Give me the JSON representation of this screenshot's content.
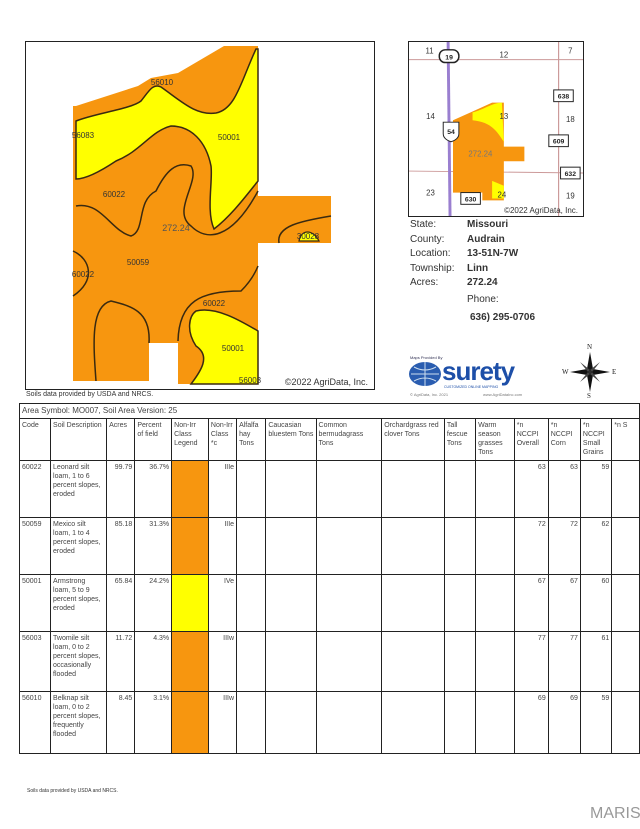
{
  "main_map": {
    "labels": [
      "56010",
      "56083",
      "50001",
      "60022",
      "272.24",
      "30028",
      "50059",
      "60022",
      "60022",
      "50001",
      "56003"
    ],
    "copyright": "©2022 AgriData, Inc.",
    "source_note": "Soils data provided by USDA and NRCS."
  },
  "mini_map": {
    "section_numbers": [
      "11",
      "12",
      "7",
      "14",
      "13",
      "18",
      "23",
      "24",
      "19"
    ],
    "route_shields": [
      "19",
      "54",
      "638",
      "609",
      "632",
      "630"
    ],
    "field_label": "272.24",
    "copyright": "©2022 AgriData, Inc."
  },
  "info": {
    "state_label": "State:",
    "state": "Missouri",
    "county_label": "County:",
    "county": "Audrain",
    "location_label": "Location:",
    "location": "13-51N-7W",
    "township_label": "Township:",
    "township": "Linn",
    "acres_label": "Acres:",
    "acres": "272.24",
    "phone_label": "Phone:",
    "phone": "636) 295-0706"
  },
  "logo": {
    "provided_by": "Maps Provided By",
    "brand": "surety",
    "tagline": "CUSTOMIZED ONLINE MAPPING",
    "footer_left": "© AgriData, Inc. 2021",
    "footer_right": "www.AgriDataInc.com",
    "compass": {
      "n": "N",
      "s": "S",
      "e": "E",
      "w": "W"
    }
  },
  "colors": {
    "orange": "#f7960f",
    "yellow": "#ffff00"
  },
  "table": {
    "title": "Area Symbol: MO007, Soil Area Version: 25",
    "headers": [
      "Code",
      "Soil Description",
      "Acres",
      "Percent of field",
      "Non-Irr Class Legend",
      "Non-Irr Class *c",
      "Alfalfa hay Tons",
      "Caucasian bluestem Tons",
      "Common bermudagrass Tons",
      "Orchardgrass red clover Tons",
      "Tall fescue Tons",
      "Warm season grasses Tons",
      "*n NCCPI Overall",
      "*n NCCPI Corn",
      "*n NCCPI Small Grains",
      "*n S"
    ],
    "rows": [
      {
        "code": "60022",
        "desc": "Leonard silt loam, 1 to 6 percent slopes, eroded",
        "acres": "99.79",
        "pct": "36.7%",
        "legend": "#f7960f",
        "cls": "IIIe",
        "overall": "63",
        "corn": "63",
        "small": "59"
      },
      {
        "code": "50059",
        "desc": "Mexico silt loam, 1 to 4 percent slopes, eroded",
        "acres": "85.18",
        "pct": "31.3%",
        "legend": "#f7960f",
        "cls": "IIIe",
        "overall": "72",
        "corn": "72",
        "small": "62"
      },
      {
        "code": "50001",
        "desc": "Armstrong loam, 5 to 9 percent slopes, eroded",
        "acres": "65.84",
        "pct": "24.2%",
        "legend": "#ffff00",
        "cls": "IVe",
        "overall": "67",
        "corn": "67",
        "small": "60"
      },
      {
        "code": "56003",
        "desc": "Twomile silt loam, 0 to 2 percent slopes, occasionally flooded",
        "acres": "11.72",
        "pct": "4.3%",
        "legend": "#f7960f",
        "cls": "IIIw",
        "overall": "77",
        "corn": "77",
        "small": "61"
      },
      {
        "code": "56010",
        "desc": "Belknap silt loam, 0 to 2 percent slopes, frequently flooded",
        "acres": "8.45",
        "pct": "3.1%",
        "legend": "#f7960f",
        "cls": "IIIw",
        "overall": "69",
        "corn": "69",
        "small": "59"
      }
    ]
  },
  "footer": {
    "source_note": "Soils data provided by USDA and NRCS.",
    "watermark": "MARIS"
  }
}
